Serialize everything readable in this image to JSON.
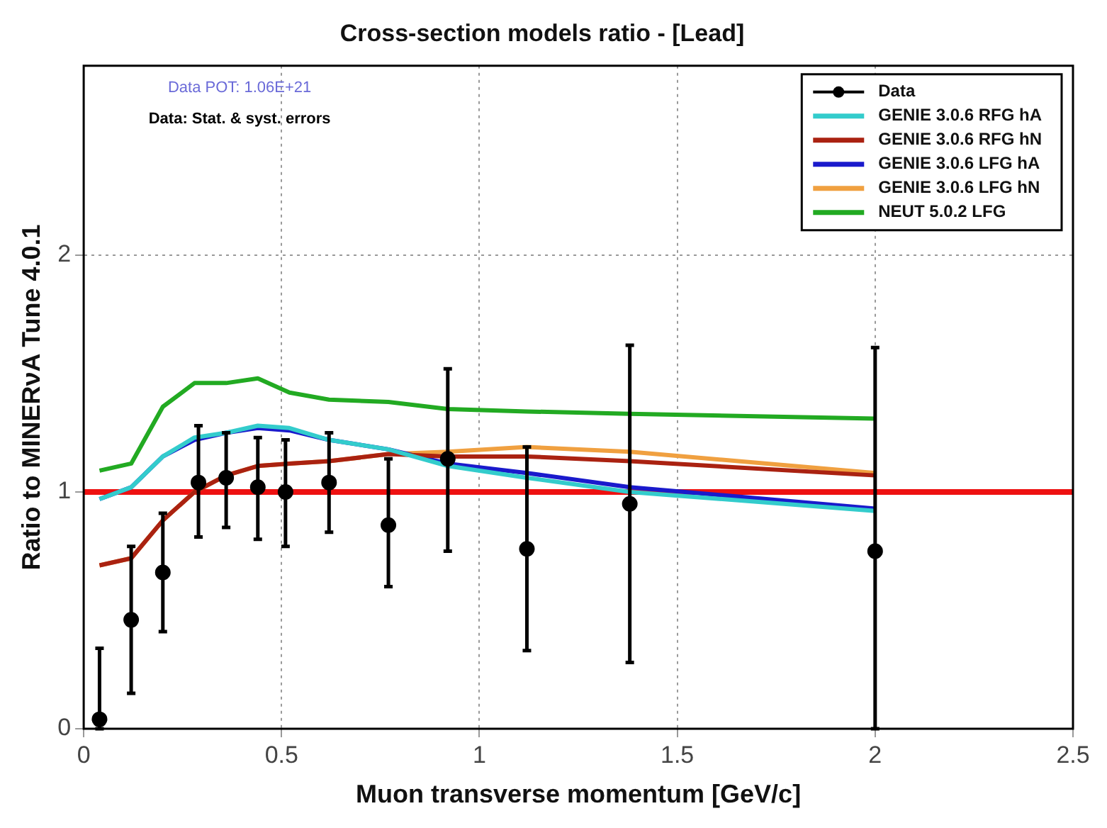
{
  "chart_data": {
    "type": "line",
    "title": "Cross-section models ratio - [Lead]",
    "xlabel": "Muon transverse momentum [GeV/c]",
    "ylabel": "Ratio to MINERνA Tune 4.0.1",
    "annotations": [
      "Data POT: 1.06E+21",
      "Data: Stat. & syst. errors"
    ],
    "xlim": [
      0,
      2.5
    ],
    "xticks": [
      0,
      0.5,
      1,
      1.5,
      2,
      2.5
    ],
    "ylim": [
      0,
      2.8
    ],
    "yticks": [
      0,
      1,
      2
    ],
    "grid": true,
    "legend": "top right",
    "ref_lines": [
      {
        "axis": "y",
        "value": 1,
        "color": "#ee1111"
      }
    ],
    "series": [
      {
        "name": "Data",
        "type": "scatter",
        "marker": "circle",
        "color": "#000000",
        "x": [
          0.04,
          0.12,
          0.2,
          0.29,
          0.36,
          0.44,
          0.51,
          0.62,
          0.77,
          0.92,
          1.12,
          1.38,
          2.0
        ],
        "values": [
          0.04,
          0.46,
          0.66,
          1.04,
          1.06,
          1.02,
          1.0,
          1.04,
          0.86,
          1.14,
          0.76,
          0.95,
          0.75
        ],
        "errors": [
          [
            0,
            0.34
          ],
          [
            0.15,
            0.77
          ],
          [
            0.41,
            0.91
          ],
          [
            0.81,
            1.28
          ],
          [
            0.85,
            1.25
          ],
          [
            0.8,
            1.23
          ],
          [
            0.77,
            1.22
          ],
          [
            0.83,
            1.25
          ],
          [
            0.6,
            1.14
          ],
          [
            0.75,
            1.52
          ],
          [
            0.33,
            1.19
          ],
          [
            0.28,
            1.62
          ],
          [
            0,
            1.61
          ]
        ]
      },
      {
        "name": "GENIE 3.0.6 RFG hA",
        "color": "#33cccc",
        "x": [
          0.04,
          0.12,
          0.2,
          0.28,
          0.36,
          0.44,
          0.52,
          0.62,
          0.77,
          0.92,
          1.12,
          1.38,
          2.0
        ],
        "values": [
          0.97,
          1.02,
          1.15,
          1.23,
          1.25,
          1.28,
          1.27,
          1.22,
          1.18,
          1.11,
          1.06,
          1.0,
          0.92
        ]
      },
      {
        "name": "GENIE 3.0.6 RFG hN",
        "color": "#aa2211",
        "x": [
          0.04,
          0.12,
          0.2,
          0.28,
          0.36,
          0.44,
          0.52,
          0.62,
          0.77,
          0.92,
          1.12,
          1.38,
          2.0
        ],
        "values": [
          0.69,
          0.72,
          0.88,
          1.0,
          1.07,
          1.11,
          1.12,
          1.13,
          1.16,
          1.15,
          1.15,
          1.13,
          1.07
        ]
      },
      {
        "name": "GENIE 3.0.6 LFG hA",
        "color": "#1a1acc",
        "x": [
          0.04,
          0.12,
          0.2,
          0.28,
          0.36,
          0.44,
          0.52,
          0.62,
          0.77,
          0.92,
          1.12,
          1.38,
          2.0
        ],
        "values": [
          0.97,
          1.02,
          1.15,
          1.22,
          1.25,
          1.27,
          1.26,
          1.22,
          1.18,
          1.12,
          1.08,
          1.02,
          0.93
        ]
      },
      {
        "name": "GENIE 3.0.6 LFG hN",
        "color": "#f0a040",
        "x": [
          0.04,
          0.12,
          0.2,
          0.28,
          0.36,
          0.44,
          0.52,
          0.62,
          0.77,
          0.92,
          1.12,
          1.38,
          2.0
        ],
        "values": [
          0.69,
          0.72,
          0.88,
          1.0,
          1.07,
          1.11,
          1.12,
          1.13,
          1.16,
          1.17,
          1.19,
          1.17,
          1.08
        ]
      },
      {
        "name": "NEUT 5.0.2 LFG",
        "color": "#22aa22",
        "x": [
          0.04,
          0.12,
          0.2,
          0.28,
          0.36,
          0.44,
          0.52,
          0.62,
          0.77,
          0.92,
          1.12,
          1.38,
          2.0
        ],
        "values": [
          1.09,
          1.12,
          1.36,
          1.46,
          1.46,
          1.48,
          1.42,
          1.39,
          1.38,
          1.35,
          1.34,
          1.33,
          1.31
        ]
      }
    ]
  }
}
